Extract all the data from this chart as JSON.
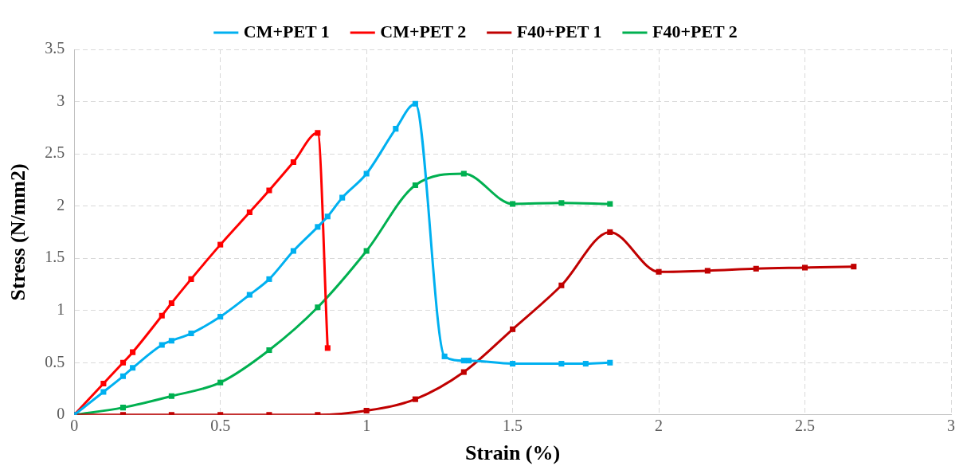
{
  "chart_data": {
    "type": "line",
    "xlabel": "Strain (%)",
    "ylabel": "Stress (N/mm2)",
    "xlim": [
      0,
      3
    ],
    "xticks": [
      0,
      0.5,
      1,
      1.5,
      2,
      2.5,
      3
    ],
    "ylim": [
      0,
      3.5
    ],
    "yticks": [
      0,
      0.5,
      1,
      1.5,
      2,
      2.5,
      3,
      3.5
    ],
    "grid": true,
    "legend": "top",
    "marker": "square",
    "line_style": "solid",
    "series": [
      {
        "name": "CM+PET 1",
        "color": "#00b0f0",
        "x": [
          0,
          0.1,
          0.167,
          0.2,
          0.3,
          0.333,
          0.4,
          0.5,
          0.6,
          0.667,
          0.75,
          0.833,
          0.867,
          0.917,
          1,
          1.1,
          1.167,
          1.267,
          1.333,
          1.35,
          1.5,
          1.667,
          1.75,
          1.833
        ],
        "values": [
          0,
          0.22,
          0.37,
          0.45,
          0.67,
          0.71,
          0.78,
          0.94,
          1.15,
          1.3,
          1.57,
          1.8,
          1.9,
          2.08,
          2.31,
          2.74,
          2.98,
          0.56,
          0.52,
          0.52,
          0.49,
          0.49,
          0.49,
          0.5
        ]
      },
      {
        "name": "CM+PET 2",
        "color": "#ff0000",
        "x": [
          0,
          0.1,
          0.167,
          0.2,
          0.3,
          0.333,
          0.4,
          0.5,
          0.6,
          0.667,
          0.75,
          0.833,
          0.867
        ],
        "values": [
          0,
          0.3,
          0.5,
          0.6,
          0.95,
          1.07,
          1.3,
          1.63,
          1.94,
          2.15,
          2.42,
          2.7,
          0.64
        ]
      },
      {
        "name": "F40+PET 1",
        "color": "#c00000",
        "x": [
          0,
          0.167,
          0.333,
          0.5,
          0.667,
          0.833,
          1,
          1.167,
          1.333,
          1.5,
          1.667,
          1.833,
          2,
          2.167,
          2.333,
          2.5,
          2.667
        ],
        "values": [
          0,
          0,
          0,
          0,
          0,
          0,
          0.04,
          0.15,
          0.41,
          0.82,
          1.24,
          1.75,
          1.37,
          1.38,
          1.4,
          1.41,
          1.42
        ]
      },
      {
        "name": "F40+PET 2",
        "color": "#00b050",
        "x": [
          0,
          0.167,
          0.333,
          0.5,
          0.667,
          0.833,
          1,
          1.167,
          1.333,
          1.5,
          1.667,
          1.833
        ],
        "values": [
          0,
          0.07,
          0.18,
          0.31,
          0.62,
          1.03,
          1.57,
          2.2,
          2.31,
          2.02,
          2.03,
          2.02
        ]
      }
    ]
  }
}
